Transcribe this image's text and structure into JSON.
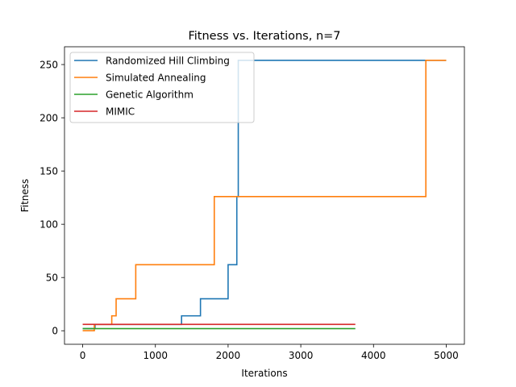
{
  "chart_data": {
    "type": "line",
    "title": "Fitness vs. Iterations, n=7",
    "xlabel": "Iterations",
    "ylabel": "Fitness",
    "xlim": [
      -250,
      5250
    ],
    "ylim": [
      -12.7,
      266.7
    ],
    "xticks": [
      0,
      1000,
      2000,
      3000,
      4000,
      5000
    ],
    "yticks": [
      0,
      50,
      100,
      150,
      200,
      250
    ],
    "legend_position": "top-left",
    "grid": false,
    "series": [
      {
        "name": "Randomized Hill Climbing",
        "color": "#1f77b4",
        "step": true,
        "points": [
          [
            0,
            2
          ],
          [
            170,
            2
          ],
          [
            170,
            6
          ],
          [
            1360,
            6
          ],
          [
            1360,
            14
          ],
          [
            1620,
            14
          ],
          [
            1620,
            30
          ],
          [
            2000,
            30
          ],
          [
            2000,
            62
          ],
          [
            2120,
            62
          ],
          [
            2120,
            126
          ],
          [
            2140,
            126
          ],
          [
            2140,
            254
          ],
          [
            5000,
            254
          ]
        ]
      },
      {
        "name": "Simulated Annealing",
        "color": "#ff7f0e",
        "step": true,
        "points": [
          [
            0,
            0
          ],
          [
            160,
            0
          ],
          [
            160,
            6
          ],
          [
            400,
            6
          ],
          [
            400,
            14
          ],
          [
            460,
            14
          ],
          [
            460,
            30
          ],
          [
            730,
            30
          ],
          [
            730,
            62
          ],
          [
            1810,
            62
          ],
          [
            1810,
            126
          ],
          [
            4720,
            126
          ],
          [
            4720,
            254
          ],
          [
            5000,
            254
          ]
        ]
      },
      {
        "name": "Genetic Algorithm",
        "color": "#2ca02c",
        "step": true,
        "points": [
          [
            0,
            2
          ],
          [
            3750,
            2
          ]
        ]
      },
      {
        "name": "MIMIC",
        "color": "#d62728",
        "step": true,
        "points": [
          [
            0,
            6
          ],
          [
            3750,
            6
          ]
        ]
      }
    ]
  }
}
